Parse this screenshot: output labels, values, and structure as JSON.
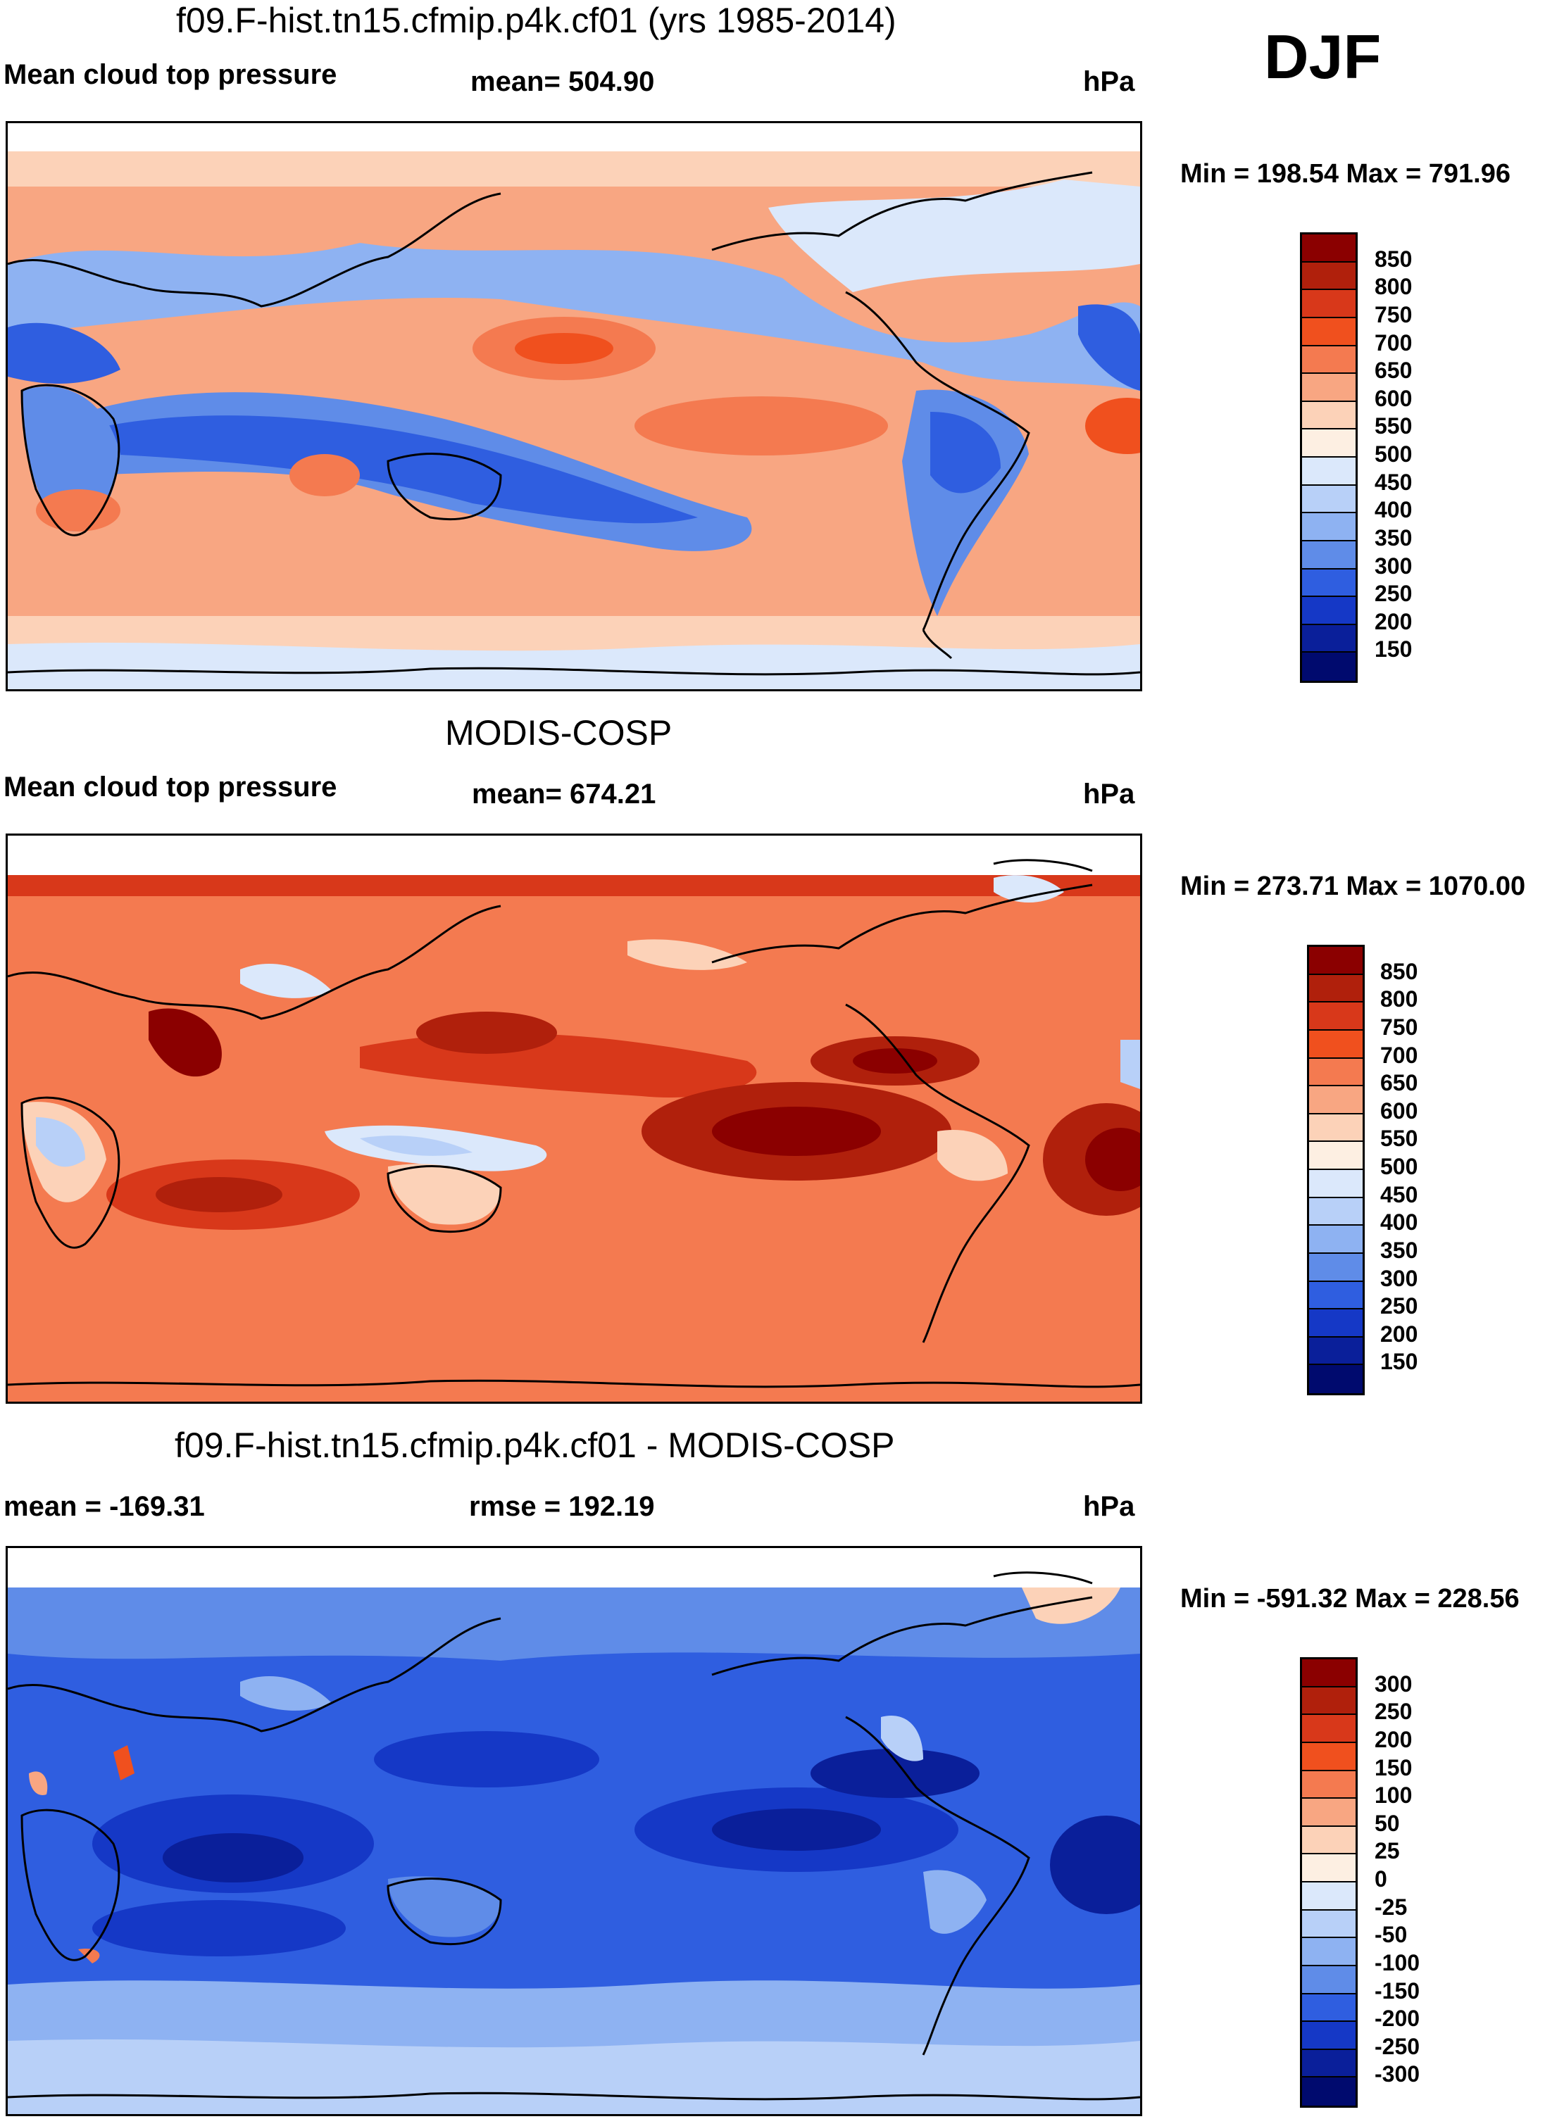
{
  "season": "DJF",
  "units": "hPa",
  "panels": [
    {
      "title": "f09.F-hist.tn15.cfmip.p4k.cf01 (yrs 1985-2014)",
      "left_label": "Mean cloud top pressure",
      "center_label": "mean= 504.90",
      "right_label": "hPa",
      "minmax": "Min = 198.54 Max = 791.96",
      "colorbar_labels": [
        "850",
        "800",
        "750",
        "700",
        "650",
        "600",
        "550",
        "500",
        "450",
        "400",
        "350",
        "300",
        "250",
        "200",
        "150"
      ],
      "colorbar_colors": [
        "#8b0000",
        "#b0200c",
        "#d8381a",
        "#f0501e",
        "#f47a50",
        "#f8a682",
        "#fcd2b8",
        "#fdefe2",
        "#dbe8fb",
        "#b8d0f8",
        "#8eb2f2",
        "#5f8ce8",
        "#2f5ee0",
        "#1538c6",
        "#0a1f9a",
        "#000a6e"
      ]
    },
    {
      "title": "MODIS-COSP",
      "left_label": "Mean cloud top pressure",
      "center_label": "mean= 674.21",
      "right_label": "hPa",
      "minmax": "Min = 273.71 Max = 1070.00",
      "colorbar_labels": [
        "850",
        "800",
        "750",
        "700",
        "650",
        "600",
        "550",
        "500",
        "450",
        "400",
        "350",
        "300",
        "250",
        "200",
        "150"
      ],
      "colorbar_colors": [
        "#8b0000",
        "#b0200c",
        "#d8381a",
        "#f0501e",
        "#f47a50",
        "#f8a682",
        "#fcd2b8",
        "#fdefe2",
        "#dbe8fb",
        "#b8d0f8",
        "#8eb2f2",
        "#5f8ce8",
        "#2f5ee0",
        "#1538c6",
        "#0a1f9a",
        "#000a6e"
      ]
    },
    {
      "title": "f09.F-hist.tn15.cfmip.p4k.cf01 - MODIS-COSP",
      "left_label": "mean = -169.31",
      "center_label": "rmse = 192.19",
      "right_label": "hPa",
      "minmax": "Min = -591.32 Max = 228.56",
      "colorbar_labels": [
        "300",
        "250",
        "200",
        "150",
        "100",
        "50",
        "25",
        "0",
        "-25",
        "-50",
        "-100",
        "-150",
        "-200",
        "-250",
        "-300"
      ],
      "colorbar_colors": [
        "#8b0000",
        "#b0200c",
        "#d8381a",
        "#f0501e",
        "#f47a50",
        "#f8a682",
        "#fcd2b8",
        "#fdefe2",
        "#dbe8fb",
        "#b8d0f8",
        "#8eb2f2",
        "#5f8ce8",
        "#2f5ee0",
        "#1538c6",
        "#0a1f9a",
        "#000a6e"
      ]
    }
  ]
}
